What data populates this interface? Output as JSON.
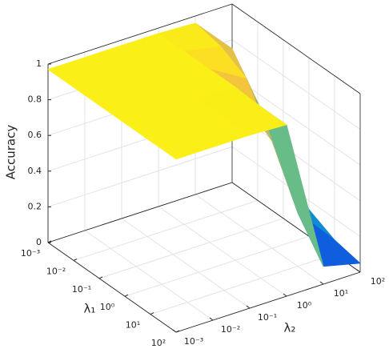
{
  "chart_data": {
    "type": "surface",
    "xlabel": "λ₂",
    "ylabel": "λ₁",
    "zlabel": "Accuracy",
    "x": [
      0.001,
      0.01,
      0.1,
      1,
      10,
      100
    ],
    "y": [
      0.001,
      0.01,
      0.1,
      1,
      10,
      100
    ],
    "z": [
      [
        0.97,
        0.97,
        0.97,
        0.97,
        0.96,
        0.75
      ],
      [
        0.97,
        0.97,
        0.97,
        0.97,
        0.93,
        0.55
      ],
      [
        0.97,
        0.97,
        0.97,
        0.97,
        0.85,
        0.3
      ],
      [
        0.97,
        0.97,
        0.97,
        0.97,
        0.6,
        0.15
      ],
      [
        0.97,
        0.97,
        0.97,
        0.96,
        0.3,
        0.08
      ],
      [
        0.97,
        0.97,
        0.97,
        0.96,
        0.1,
        0.05
      ]
    ],
    "xlim": [
      0.001,
      100
    ],
    "ylim": [
      0.001,
      100
    ],
    "zlim": [
      0,
      1
    ],
    "xscale": "log",
    "yscale": "log",
    "xticks": [
      {
        "value": 0.001,
        "label": "10⁻³"
      },
      {
        "value": 0.01,
        "label": "10⁻²"
      },
      {
        "value": 0.1,
        "label": "10⁻¹"
      },
      {
        "value": 1,
        "label": "10⁰"
      },
      {
        "value": 10,
        "label": "10¹"
      },
      {
        "value": 100,
        "label": "10²"
      }
    ],
    "yticks": [
      {
        "value": 0.001,
        "label": "10⁻³"
      },
      {
        "value": 0.01,
        "label": "10⁻²"
      },
      {
        "value": 0.1,
        "label": "10⁻¹"
      },
      {
        "value": 1,
        "label": "10⁰"
      },
      {
        "value": 10,
        "label": "10¹"
      },
      {
        "value": 100,
        "label": "10²"
      }
    ],
    "zticks": [
      0,
      0.2,
      0.4,
      0.6,
      0.8,
      1
    ],
    "grid": true,
    "colormap": [
      "#352a87",
      "#0f5cdd",
      "#1481d6",
      "#06a4ca",
      "#2eb7a4",
      "#87bf77",
      "#d1bb59",
      "#fec832",
      "#f9fb0e"
    ]
  }
}
